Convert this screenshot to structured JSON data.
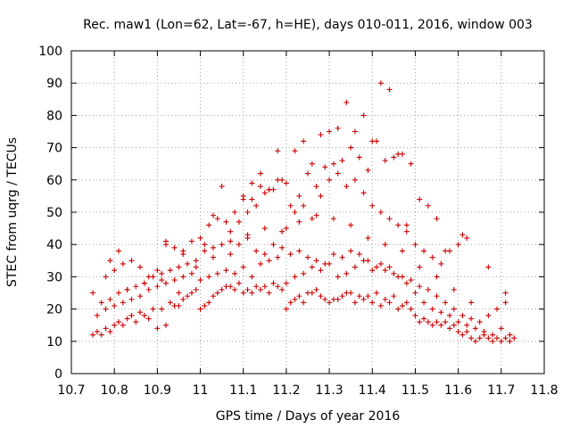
{
  "chart_data": {
    "type": "scatter",
    "title": "Rec. maw1 (Lon=62, Lat=-67, h=HE), days 010-011, 2016, window 003",
    "xlabel": "GPS time / Days of year 2016",
    "ylabel": "STEC from uqrg / TECUs",
    "xlim": [
      10.7,
      11.8
    ],
    "ylim": [
      0,
      100
    ],
    "xticks": [
      "10.7",
      "10.8",
      "10.9",
      "11",
      "11.1",
      "11.2",
      "11.3",
      "11.4",
      "11.5",
      "11.6",
      "11.7",
      "11.8"
    ],
    "yticks": [
      "0",
      "10",
      "20",
      "30",
      "40",
      "50",
      "60",
      "70",
      "80",
      "90",
      "100"
    ],
    "grid": true,
    "marker": "plus",
    "color": "#cc0000",
    "series": [
      {
        "x": [
          10.75,
          10.75,
          10.76,
          10.77,
          10.78,
          10.79,
          10.8,
          10.81,
          10.82,
          10.83,
          10.84,
          10.85,
          10.86,
          10.87,
          10.88,
          10.89,
          10.9,
          10.91,
          10.92,
          10.93,
          10.94,
          10.95,
          10.96,
          10.97,
          10.98,
          10.99,
          11.0,
          11.01,
          11.02,
          11.03,
          11.04,
          11.05,
          11.06,
          11.07,
          11.08,
          11.09,
          11.1,
          11.11,
          11.12,
          11.13,
          11.14,
          11.15,
          11.16,
          11.17,
          11.18,
          11.19,
          11.2,
          11.21,
          11.22,
          11.23,
          11.24,
          11.25,
          11.26,
          11.27,
          11.28,
          11.29,
          11.3,
          11.31,
          11.32,
          11.33,
          11.34,
          11.35,
          11.36,
          11.37,
          11.38,
          11.39,
          11.4,
          11.41,
          11.42,
          11.43,
          11.44,
          11.45,
          11.46,
          11.47,
          11.48,
          11.49,
          11.5,
          11.51,
          11.52,
          11.53,
          11.54,
          11.55,
          11.56,
          11.57,
          11.58,
          11.59,
          11.6,
          11.61,
          11.62,
          11.63,
          11.64,
          11.65,
          11.66,
          11.67,
          11.68,
          11.69,
          11.7,
          11.71,
          11.72,
          11.73
        ],
        "y": [
          12,
          25,
          13,
          12,
          14,
          13,
          15,
          16,
          15,
          17,
          18,
          16,
          19,
          18,
          17,
          20,
          14,
          20,
          15,
          22,
          21,
          21,
          23,
          24,
          25,
          26,
          20,
          21,
          22,
          24,
          25,
          26,
          27,
          27,
          26,
          28,
          25,
          26,
          25,
          27,
          26,
          27,
          25,
          28,
          27,
          26,
          20,
          22,
          23,
          24,
          22,
          25,
          25,
          26,
          24,
          23,
          22,
          23,
          23,
          24,
          25,
          25,
          22,
          24,
          23,
          24,
          22,
          25,
          21,
          23,
          22,
          24,
          20,
          21,
          22,
          20,
          18,
          16,
          17,
          16,
          15,
          16,
          15,
          16,
          14,
          15,
          13,
          12,
          13,
          11,
          10,
          11,
          12,
          11,
          10,
          11,
          10,
          11,
          10,
          11
        ]
      },
      {
        "x": [
          10.76,
          10.78,
          10.8,
          10.82,
          10.84,
          10.86,
          10.88,
          10.9,
          10.92,
          10.94,
          10.96,
          10.98,
          11.0,
          11.02,
          11.04,
          11.06,
          11.08,
          11.1,
          11.12,
          11.14,
          11.16,
          11.18,
          11.2,
          11.22,
          11.24,
          11.26,
          11.28,
          11.3,
          11.32,
          11.34,
          11.36,
          11.38,
          11.4,
          11.42,
          11.44,
          11.46,
          11.48,
          11.5,
          11.52,
          11.54,
          11.56,
          11.58,
          11.6,
          11.62,
          11.64,
          11.66,
          11.68,
          11.7,
          11.72
        ],
        "y": [
          18,
          20,
          21,
          22,
          23,
          24,
          26,
          27,
          28,
          29,
          30,
          31,
          29,
          30,
          31,
          32,
          31,
          33,
          30,
          34,
          35,
          36,
          28,
          30,
          31,
          33,
          32,
          34,
          30,
          31,
          33,
          35,
          32,
          34,
          33,
          30,
          28,
          25,
          22,
          20,
          19,
          18,
          16,
          15,
          14,
          13,
          12,
          14,
          12
        ]
      },
      {
        "x": [
          10.77,
          10.79,
          10.81,
          10.83,
          10.85,
          10.87,
          10.89,
          10.91,
          10.93,
          10.95,
          10.97,
          10.99,
          11.01,
          11.03,
          11.05,
          11.07,
          11.09,
          11.11,
          11.13,
          11.15,
          11.17,
          11.19,
          11.21,
          11.23,
          11.25,
          11.27,
          11.29,
          11.31,
          11.33,
          11.35,
          11.37,
          11.39,
          11.41,
          11.43,
          11.45,
          11.47,
          11.49,
          11.51,
          11.53,
          11.55,
          11.57,
          11.59,
          11.61,
          11.63,
          11.65,
          11.67,
          11.69,
          11.71
        ],
        "y": [
          22,
          23,
          25,
          26,
          27,
          28,
          30,
          31,
          32,
          33,
          34,
          35,
          38,
          39,
          40,
          41,
          40,
          42,
          38,
          37,
          40,
          39,
          37,
          38,
          36,
          35,
          34,
          37,
          36,
          38,
          37,
          35,
          33,
          32,
          31,
          30,
          29,
          27,
          26,
          24,
          22,
          20,
          18,
          17,
          16,
          18,
          20,
          22
        ]
      },
      {
        "x": [
          10.78,
          10.8,
          10.82,
          10.84,
          10.86,
          10.88,
          10.9,
          10.92,
          10.94,
          10.96,
          10.98,
          11.0,
          11.02,
          11.04,
          11.06,
          11.08,
          11.1,
          11.12,
          11.14,
          11.16,
          11.18,
          11.2,
          11.22,
          11.24,
          11.26,
          11.28,
          11.3,
          11.32,
          11.34,
          11.36,
          11.38,
          11.4,
          11.42,
          11.44,
          11.46,
          11.48,
          11.5,
          11.52,
          11.54,
          11.56,
          11.58,
          11.6,
          11.62
        ],
        "y": [
          30,
          32,
          34,
          35,
          33,
          30,
          32,
          40,
          39,
          38,
          41,
          42,
          46,
          48,
          47,
          50,
          55,
          54,
          58,
          57,
          60,
          45,
          50,
          52,
          48,
          55,
          60,
          62,
          58,
          60,
          56,
          52,
          50,
          48,
          46,
          44,
          40,
          38,
          36,
          34,
          38,
          40,
          42
        ]
      },
      {
        "x": [
          10.79,
          10.81,
          10.92,
          10.96,
          11.01,
          11.03,
          11.05,
          11.07,
          11.09,
          11.11,
          11.13,
          11.15,
          11.17,
          11.19,
          11.21,
          11.23,
          11.25,
          11.27,
          11.29,
          11.31,
          11.33,
          11.35,
          11.37,
          11.39,
          11.41,
          11.43,
          11.45,
          11.47,
          11.49,
          11.51,
          11.53,
          11.55,
          11.57,
          11.61
        ],
        "y": [
          35,
          38,
          41,
          37,
          40,
          49,
          58,
          44,
          47,
          50,
          52,
          56,
          57,
          60,
          52,
          55,
          62,
          58,
          64,
          65,
          66,
          70,
          67,
          63,
          72,
          66,
          67,
          68,
          65,
          54,
          52,
          48,
          38,
          43
        ]
      },
      {
        "x": [
          11.1,
          11.12,
          11.14,
          11.16,
          11.18,
          11.2,
          11.22,
          11.24,
          11.26,
          11.28,
          11.3,
          11.32,
          11.34,
          11.36,
          11.38,
          11.4,
          11.42,
          11.44,
          11.46,
          11.48
        ],
        "y": [
          54,
          59,
          62,
          57,
          69,
          59,
          69,
          72,
          65,
          74,
          75,
          76,
          84,
          75,
          80,
          72,
          90,
          88,
          68,
          46
        ]
      },
      {
        "x": [
          10.83,
          10.87,
          10.91,
          10.95,
          10.99,
          11.03,
          11.07,
          11.11,
          11.15,
          11.19,
          11.23,
          11.27,
          11.31,
          11.35,
          11.39,
          11.43,
          11.47,
          11.51,
          11.55,
          11.59,
          11.63,
          11.67,
          11.71
        ],
        "y": [
          26,
          28,
          29,
          25,
          33,
          36,
          37,
          43,
          45,
          44,
          47,
          49,
          48,
          46,
          42,
          40,
          38,
          33,
          30,
          26,
          22,
          33,
          25
        ]
      }
    ]
  }
}
